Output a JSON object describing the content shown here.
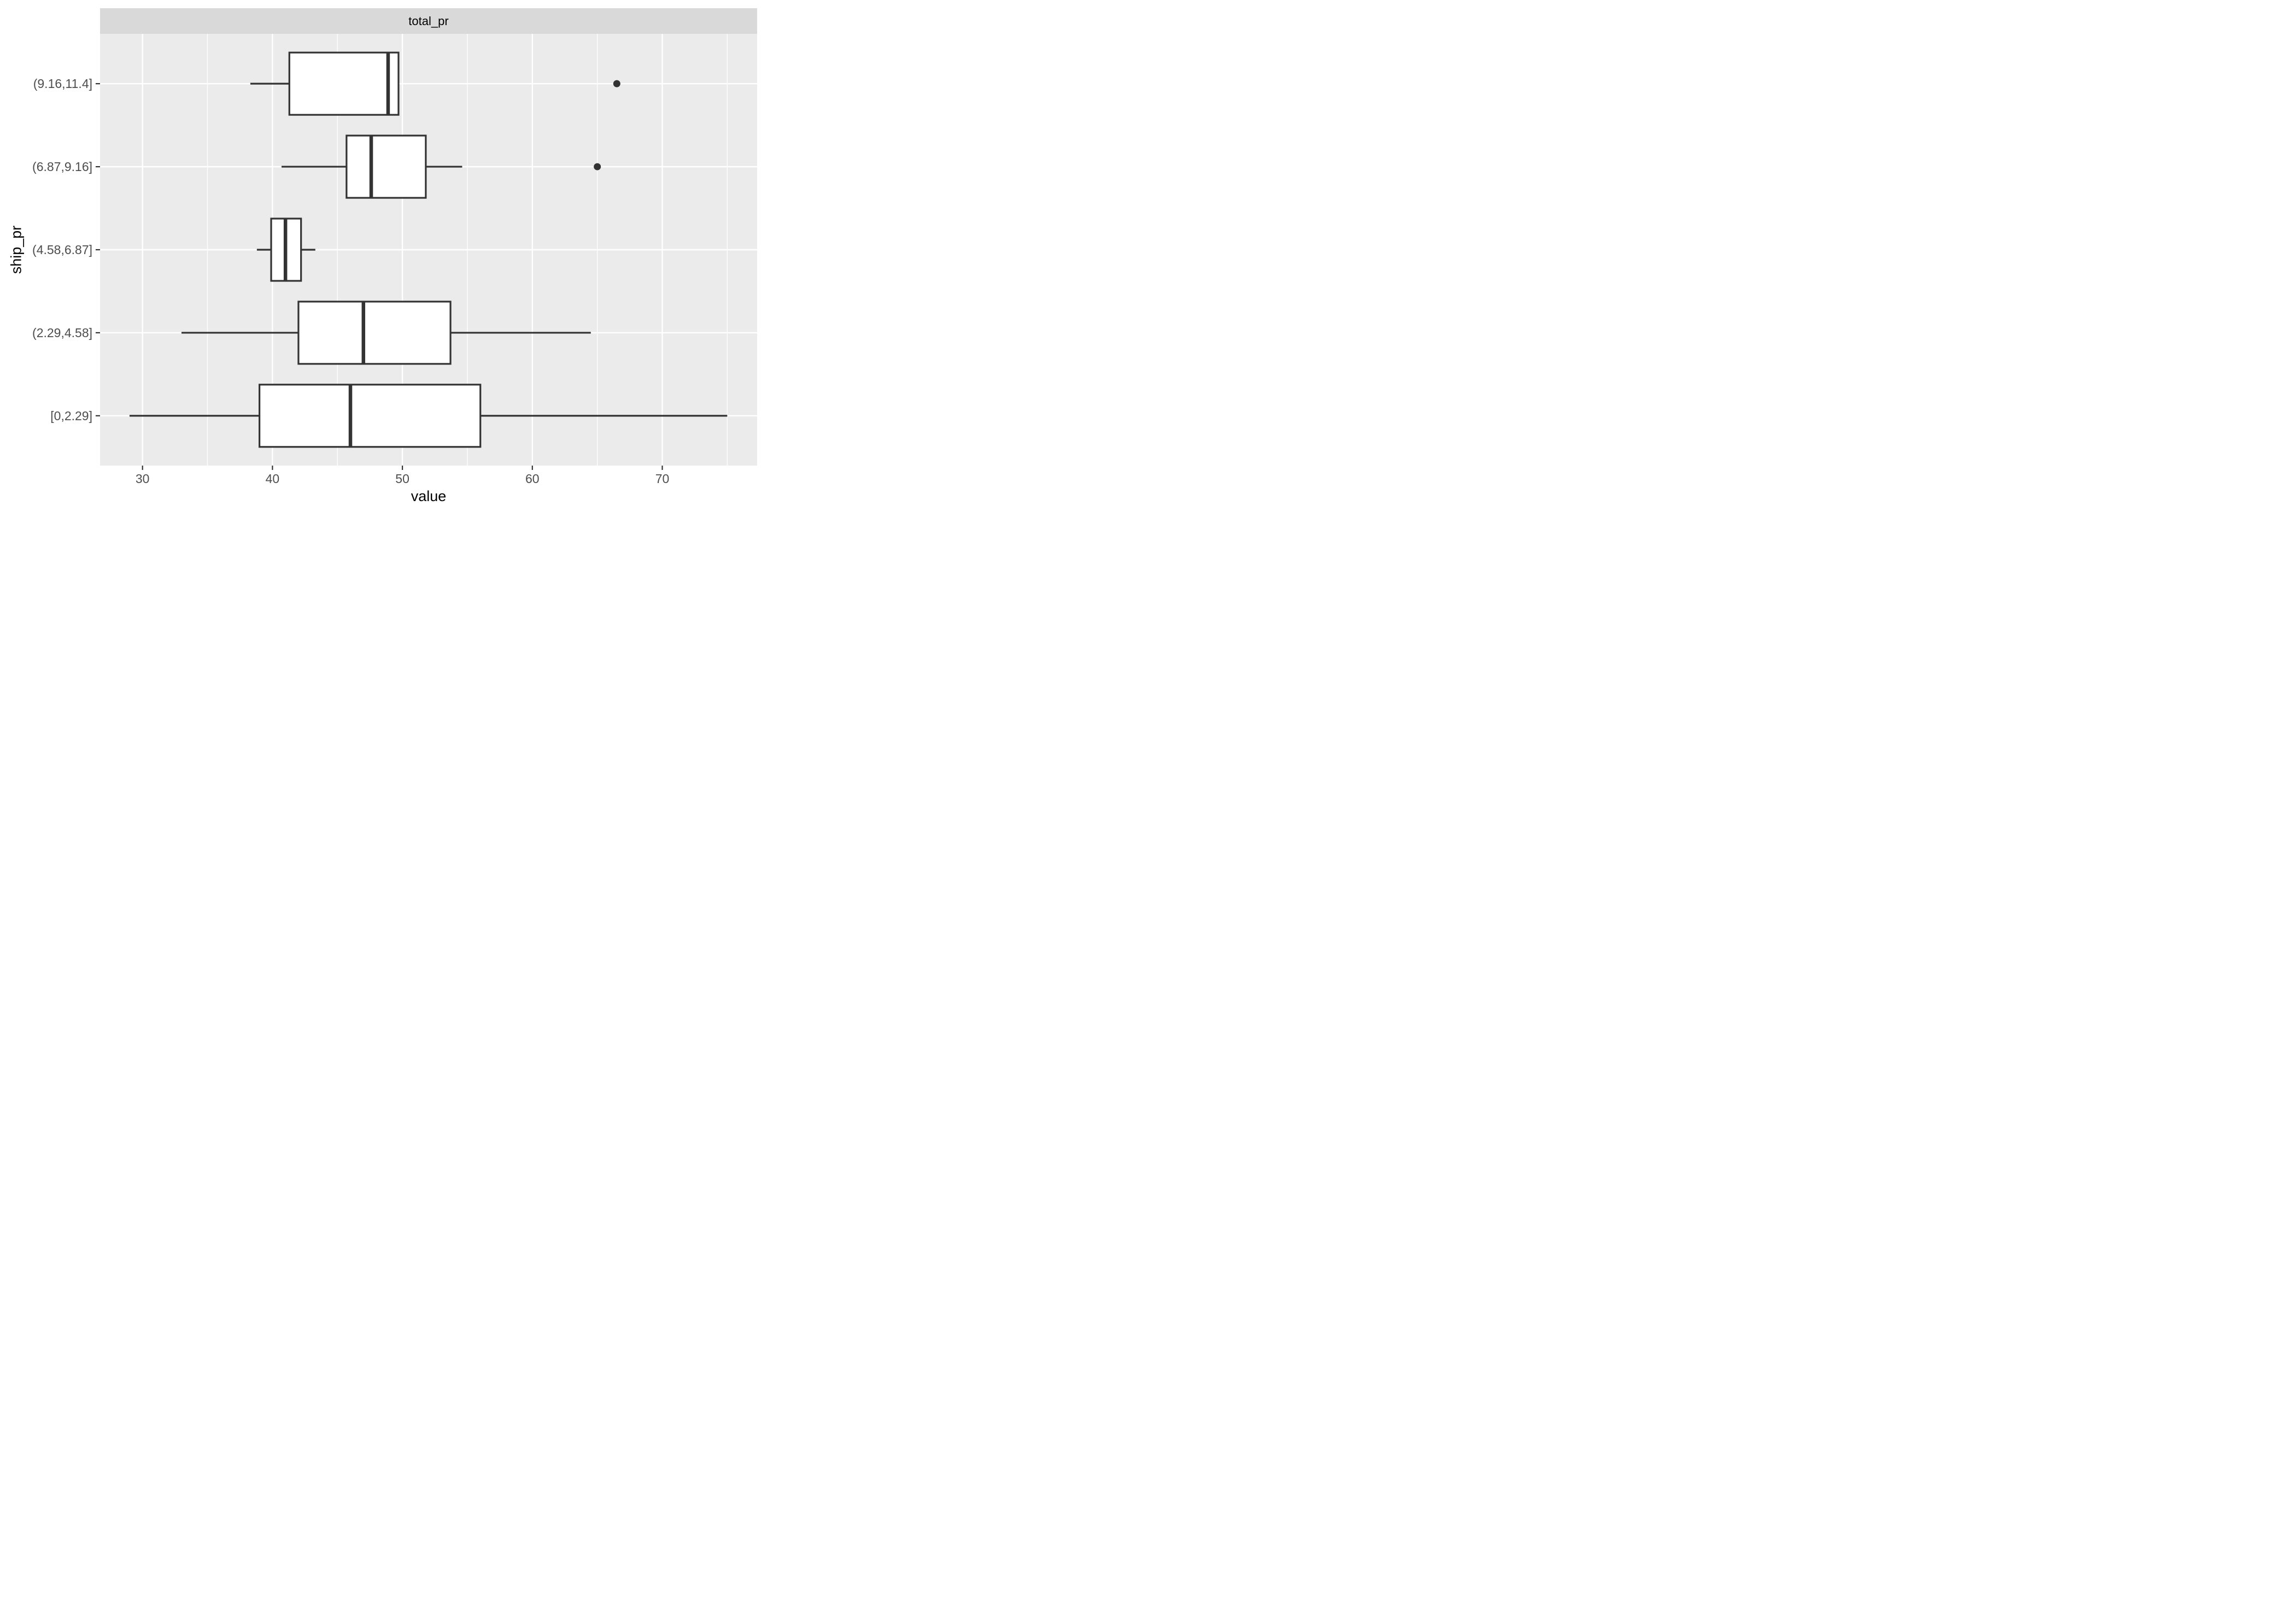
{
  "figure": {
    "background": "#FFFFFF"
  },
  "chart_data": {
    "type": "boxplot",
    "orientation": "horizontal",
    "facet_label": "total_pr",
    "xlabel": "value",
    "ylabel": "ship_pr",
    "x_ticks": [
      30,
      40,
      50,
      60,
      70
    ],
    "x_minor_gridlines": [
      35,
      45,
      55,
      65,
      75
    ],
    "xlim": [
      26.7,
      77.3
    ],
    "grid": "on",
    "categories_top_to_bottom": [
      "(9.16,11.4]",
      "(6.87,9.16]",
      "(4.58,6.87]",
      "(2.29,4.58]",
      "[0,2.29]"
    ],
    "boxes": [
      {
        "category": "(9.16,11.4]",
        "whisker_min": 38.3,
        "q1": 41.3,
        "median": 48.9,
        "q3": 49.7,
        "whisker_max": 49.7,
        "outliers": [
          66.5
        ]
      },
      {
        "category": "(6.87,9.16]",
        "whisker_min": 40.7,
        "q1": 45.7,
        "median": 47.6,
        "q3": 51.8,
        "whisker_max": 54.6,
        "outliers": [
          65.0
        ]
      },
      {
        "category": "(4.58,6.87]",
        "whisker_min": 38.8,
        "q1": 39.9,
        "median": 41.0,
        "q3": 42.2,
        "whisker_max": 43.3,
        "outliers": []
      },
      {
        "category": "(2.29,4.58]",
        "whisker_min": 33.0,
        "q1": 42.0,
        "median": 47.0,
        "q3": 53.7,
        "whisker_max": 64.5,
        "outliers": []
      },
      {
        "category": "[0,2.29]",
        "whisker_min": 29.0,
        "q1": 39.0,
        "median": 46.0,
        "q3": 56.0,
        "whisker_max": 75.0,
        "outliers": []
      }
    ],
    "colors": {
      "panel_bg": "#EBEBEB",
      "strip_bg": "#D9D9D9",
      "gridline": "#FFFFFF",
      "box_stroke": "#333333",
      "box_fill": "#FFFFFF",
      "outlier": "#333333",
      "tick_mark": "#333333",
      "tick_label": "#4D4D4D",
      "axis_title": "#000000",
      "strip_text": "#000000"
    }
  }
}
